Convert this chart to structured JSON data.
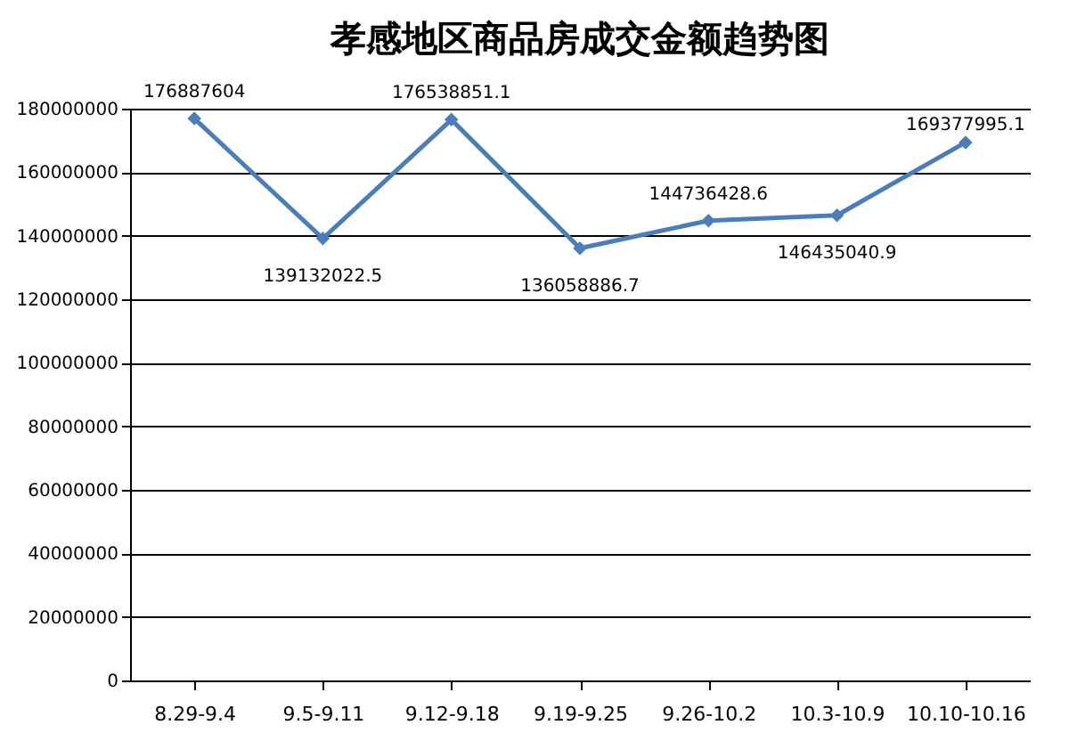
{
  "chart_data": {
    "type": "line",
    "title": "孝感地区商品房成交金额趋势图",
    "categories": [
      "8.29-9.4",
      "9.5-9.11",
      "9.12-9.18",
      "9.19-9.25",
      "9.26-10.2",
      "10.3-10.9",
      "10.10-10.16"
    ],
    "series": [
      {
        "color": "#4a7ebb",
        "values": [
          176887604,
          139132022.5,
          176538851.1,
          136058886.7,
          144736428.6,
          146435040.9,
          169377995.1
        ]
      }
    ],
    "ylim": [
      0,
      180000000
    ],
    "yticks": [
      0,
      20000000,
      40000000,
      60000000,
      80000000,
      100000000,
      120000000,
      140000000,
      160000000,
      180000000
    ],
    "grid": "y",
    "marker": "diamond",
    "line_style": "solid",
    "data_labels": true
  }
}
